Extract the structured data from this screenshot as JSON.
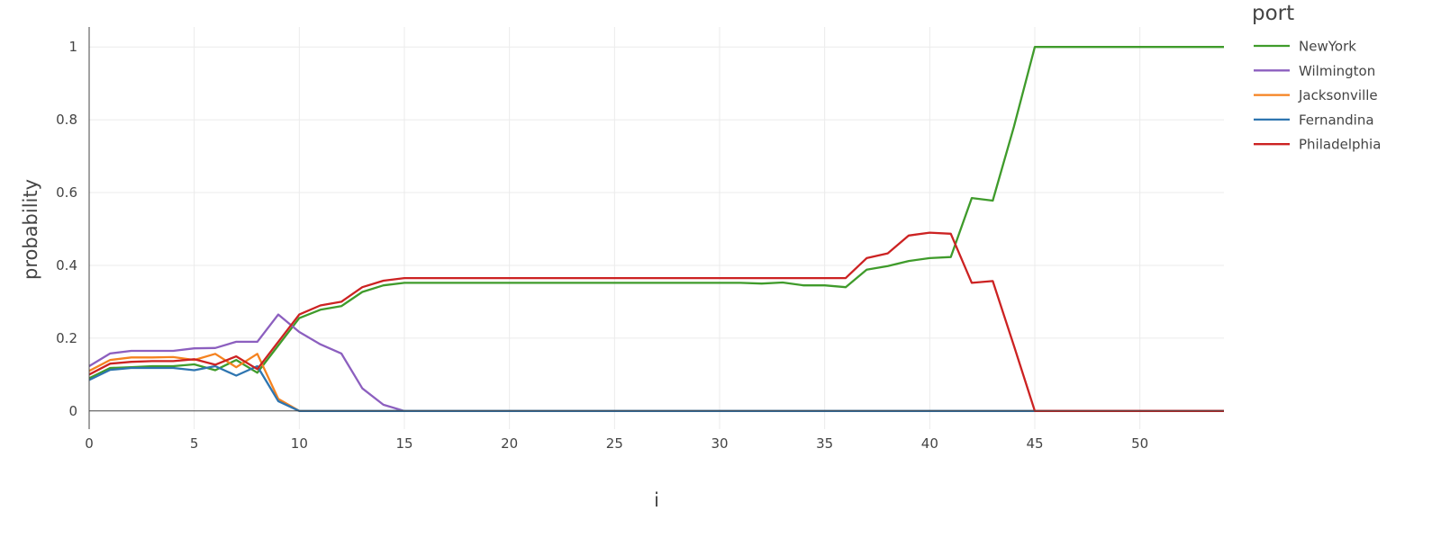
{
  "chart_data": {
    "type": "line",
    "title": "",
    "xlabel": "i",
    "ylabel": "probability",
    "xlim": [
      0,
      54
    ],
    "ylim": [
      -0.05,
      1.055
    ],
    "x_ticks": [
      0,
      5,
      10,
      15,
      20,
      25,
      30,
      35,
      40,
      45,
      50
    ],
    "y_ticks": [
      0,
      0.2,
      0.4,
      0.6,
      0.8,
      1
    ],
    "y_tick_labels": [
      "0",
      "0.2",
      "0.4",
      "0.6",
      "0.8",
      "1"
    ],
    "grid": true,
    "legend": {
      "title": "port",
      "placement": "top-right"
    },
    "x": [
      0,
      1,
      2,
      3,
      4,
      5,
      6,
      7,
      8,
      9,
      10,
      11,
      12,
      13,
      14,
      15,
      16,
      17,
      18,
      19,
      20,
      21,
      22,
      23,
      24,
      25,
      26,
      27,
      28,
      29,
      30,
      31,
      32,
      33,
      34,
      35,
      36,
      37,
      38,
      39,
      40,
      41,
      42,
      43,
      44,
      45,
      46,
      47,
      48,
      49,
      50,
      51,
      52,
      53,
      54
    ],
    "series": [
      {
        "name": "NewYork",
        "color": "#3f9b2b",
        "values": [
          0.09,
          0.118,
          0.12,
          0.123,
          0.123,
          0.128,
          0.112,
          0.14,
          0.105,
          0.18,
          0.255,
          0.278,
          0.288,
          0.327,
          0.345,
          0.352,
          0.352,
          0.352,
          0.352,
          0.352,
          0.352,
          0.352,
          0.352,
          0.352,
          0.352,
          0.352,
          0.352,
          0.352,
          0.352,
          0.352,
          0.352,
          0.352,
          0.35,
          0.353,
          0.345,
          0.345,
          0.34,
          0.388,
          0.398,
          0.412,
          0.42,
          0.423,
          0.585,
          0.578,
          0.78,
          1,
          1,
          1,
          1,
          1,
          1,
          1,
          1,
          1,
          1
        ]
      },
      {
        "name": "Wilmington",
        "color": "#8c5fbf",
        "values": [
          0.123,
          0.158,
          0.165,
          0.165,
          0.165,
          0.172,
          0.173,
          0.19,
          0.19,
          0.265,
          0.217,
          0.183,
          0.158,
          0.062,
          0.017,
          0,
          0,
          0,
          0,
          0,
          0,
          0,
          0,
          0,
          0,
          0,
          0,
          0,
          0,
          0,
          0,
          0,
          0,
          0,
          0,
          0,
          0,
          0,
          0,
          0,
          0,
          0,
          0,
          0,
          0,
          0,
          0,
          0,
          0,
          0,
          0,
          0,
          0,
          0,
          0
        ]
      },
      {
        "name": "Jacksonville",
        "color": "#f5821f",
        "values": [
          0.11,
          0.14,
          0.147,
          0.147,
          0.148,
          0.14,
          0.157,
          0.12,
          0.157,
          0.033,
          0,
          0,
          0,
          0,
          0,
          0,
          0,
          0,
          0,
          0,
          0,
          0,
          0,
          0,
          0,
          0,
          0,
          0,
          0,
          0,
          0,
          0,
          0,
          0,
          0,
          0,
          0,
          0,
          0,
          0,
          0,
          0,
          0,
          0,
          0,
          0,
          0,
          0,
          0,
          0,
          0,
          0,
          0,
          0,
          0
        ]
      },
      {
        "name": "Fernandina",
        "color": "#2e75b0",
        "values": [
          0.085,
          0.113,
          0.118,
          0.118,
          0.118,
          0.112,
          0.123,
          0.097,
          0.123,
          0.027,
          0,
          0,
          0,
          0,
          0,
          0,
          0,
          0,
          0,
          0,
          0,
          0,
          0,
          0,
          0,
          0,
          0,
          0,
          0,
          0,
          0,
          0,
          0,
          0,
          0,
          0,
          0,
          0,
          0,
          0,
          0,
          0,
          0,
          0,
          0,
          0,
          0,
          0,
          0,
          0,
          0,
          0,
          0,
          0,
          0
        ]
      },
      {
        "name": "Philadelphia",
        "color": "#cc2222",
        "values": [
          0.1,
          0.13,
          0.135,
          0.137,
          0.137,
          0.142,
          0.127,
          0.15,
          0.115,
          0.19,
          0.265,
          0.29,
          0.3,
          0.34,
          0.358,
          0.365,
          0.365,
          0.365,
          0.365,
          0.365,
          0.365,
          0.365,
          0.365,
          0.365,
          0.365,
          0.365,
          0.365,
          0.365,
          0.365,
          0.365,
          0.365,
          0.365,
          0.365,
          0.365,
          0.365,
          0.365,
          0.365,
          0.42,
          0.433,
          0.482,
          0.49,
          0.487,
          0.352,
          0.357,
          0.18,
          0,
          0,
          0,
          0,
          0,
          0,
          0,
          0,
          0,
          0
        ]
      }
    ]
  }
}
